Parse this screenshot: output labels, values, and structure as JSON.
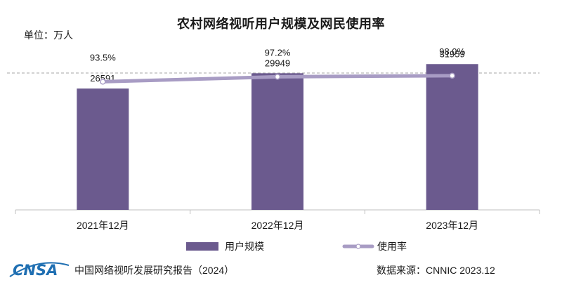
{
  "chart_data": {
    "type": "bar",
    "title": "农村网络视听用户规模及网民使用率",
    "unit_label": "单位：万人",
    "categories": [
      "2021年12月",
      "2022年12月",
      "2023年12月"
    ],
    "series": [
      {
        "name": "用户规模",
        "type": "bar",
        "values": [
          26591,
          29949,
          31959
        ],
        "labels": [
          "26591",
          "29949",
          "31959"
        ]
      },
      {
        "name": "使用率",
        "type": "line",
        "values": [
          93.5,
          97.2,
          98.0
        ],
        "labels": [
          "93.5%",
          "97.2%",
          "98.0%"
        ]
      }
    ],
    "ylim": [
      0,
      100
    ],
    "grid": false,
    "legend_position": "bottom"
  },
  "colors": {
    "bar": "#6b5a8e",
    "line": "#a89cc4",
    "dashed_ref": "#b8b8b8",
    "axis": "#bfbfbf",
    "logo": "#1f6fb2"
  },
  "footer": {
    "logo_text": "CNSA",
    "source_left": "中国网络视听发展研究报告（2024）",
    "source_right": "数据来源：CNNIC  2023.12"
  }
}
